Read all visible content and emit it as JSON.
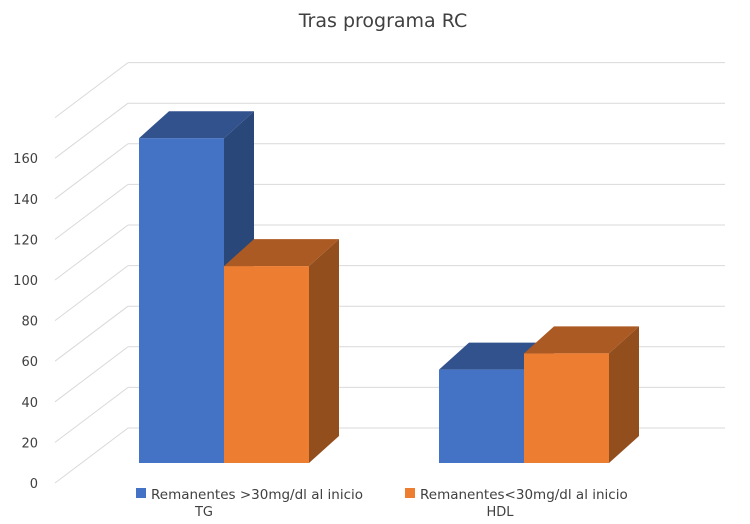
{
  "chart_data": {
    "type": "bar",
    "title": "Tras programa RC",
    "categories": [
      "TG",
      "HDL"
    ],
    "series": [
      {
        "name": "Remanentes >30mg/dl al inicio",
        "values": [
          160,
          46
        ],
        "color": "#4472C4"
      },
      {
        "name": "Remanentes<30mg/dl al inicio",
        "values": [
          97,
          54
        ],
        "color": "#ED7D31"
      }
    ],
    "yticks": [
      0,
      20,
      40,
      60,
      80,
      100,
      120,
      140,
      160
    ],
    "ylim": [
      0,
      180
    ],
    "grid": true,
    "legend": "bottom",
    "style": "3d-clustered-column"
  }
}
